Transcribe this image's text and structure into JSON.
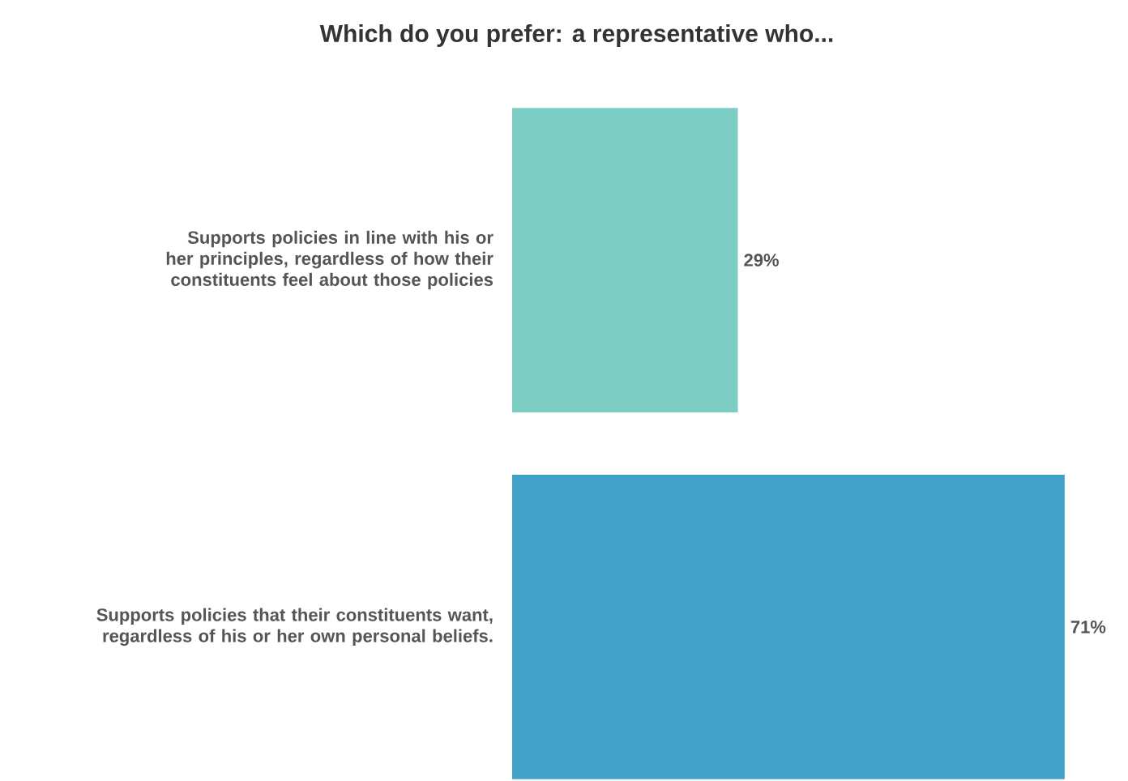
{
  "chart_data": {
    "type": "bar",
    "orientation": "horizontal",
    "title": "Which do you prefer: a representative who...",
    "categories": [
      "Supports policies in line with his or her principles, regardless of how their constituents feel about those policies",
      "Supports policies that their constituents want, regardless of his or her own personal beliefs."
    ],
    "values": [
      29,
      71
    ],
    "colors": [
      "#7ccdc4",
      "#41a2c9"
    ],
    "value_labels": [
      "29%",
      "71%"
    ]
  }
}
